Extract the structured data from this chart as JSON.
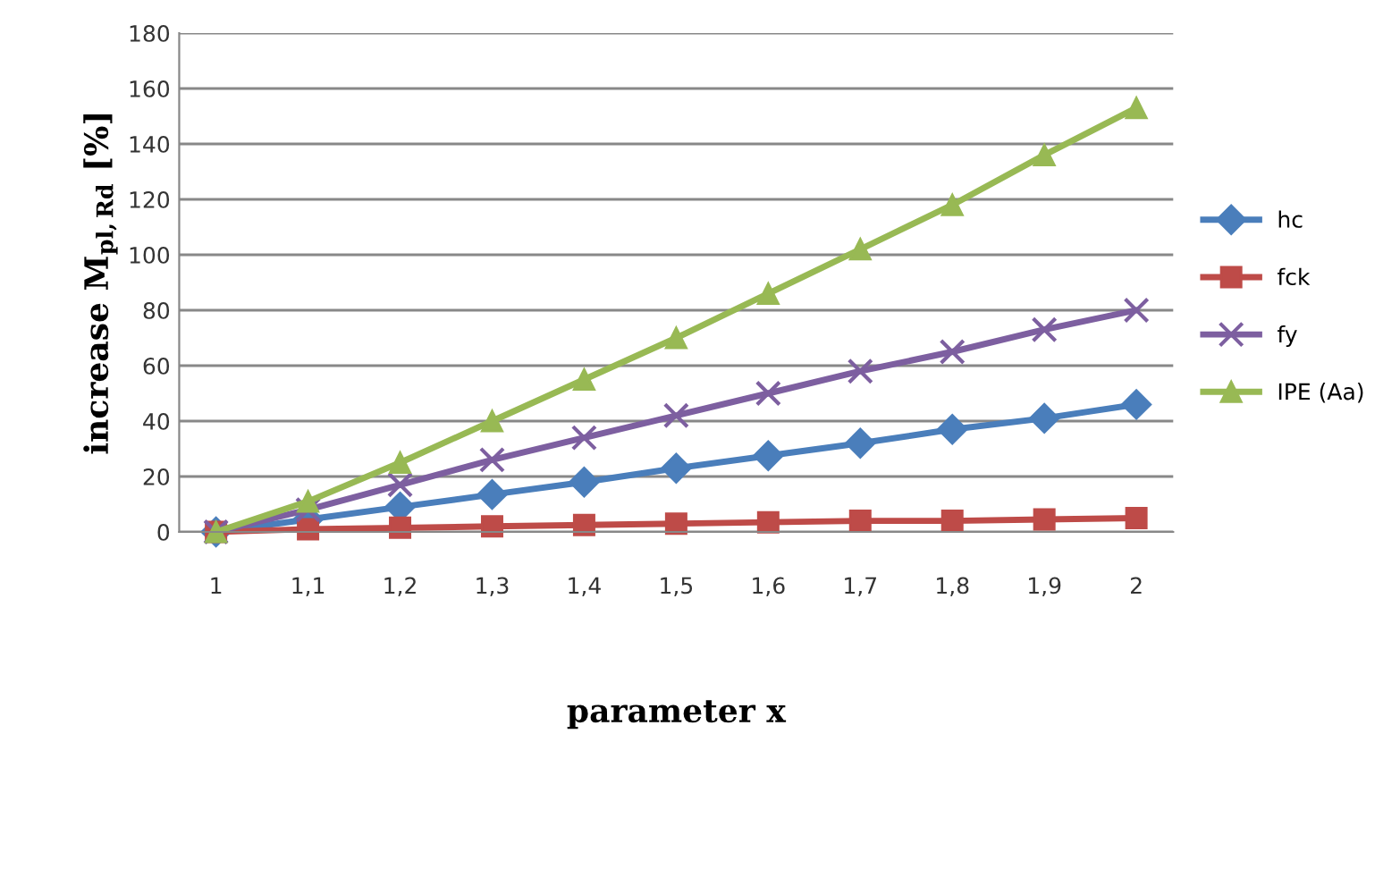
{
  "chart_data": {
    "type": "line",
    "xlabel": "parameter x",
    "ylabel": "increase M$_{pl,Rd}$ [%]",
    "categories": [
      "1",
      "1,1",
      "1,2",
      "1,3",
      "1,4",
      "1,5",
      "1,6",
      "1,7",
      "1,8",
      "1,9",
      "2"
    ],
    "series": [
      {
        "name": "hc",
        "color": "#4a7ebb",
        "marker": "diamond",
        "values": [
          0,
          4.5,
          9,
          13.5,
          18,
          23,
          27.5,
          32,
          37,
          41,
          46
        ]
      },
      {
        "name": "fck",
        "color": "#be4b48",
        "marker": "square",
        "values": [
          0,
          1,
          1.5,
          2,
          2.5,
          3,
          3.5,
          4,
          4,
          4.5,
          5
        ]
      },
      {
        "name": "fy",
        "color": "#7d5fa0",
        "marker": "cross",
        "values": [
          0,
          8,
          17,
          26,
          34,
          42,
          50,
          58,
          65,
          73,
          80
        ]
      },
      {
        "name": "IPE (Aa)",
        "color": "#98b954",
        "marker": "triangle",
        "values": [
          0,
          11,
          25,
          40,
          55,
          70,
          86,
          102,
          118,
          136,
          153
        ]
      }
    ],
    "ylim": [
      0,
      180
    ],
    "yticks": [
      0,
      20,
      40,
      60,
      80,
      100,
      120,
      140,
      160,
      180
    ],
    "grid": "y",
    "legend": "right",
    "line_style": "solid"
  }
}
